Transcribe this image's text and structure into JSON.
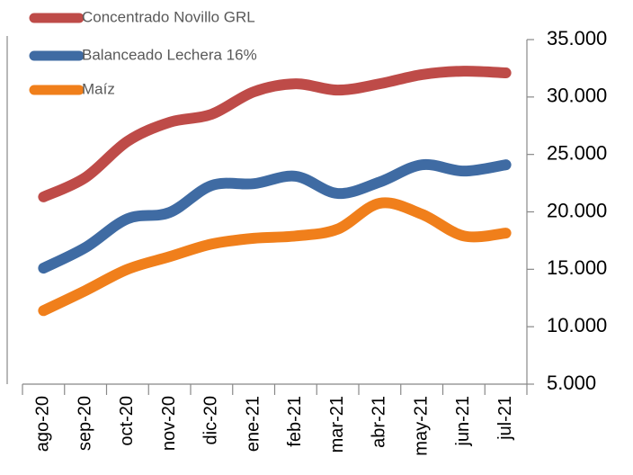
{
  "chart_data": {
    "type": "line",
    "categories": [
      "ago-20",
      "sep-20",
      "oct-20",
      "nov-20",
      "dic-20",
      "ene-21",
      "feb-21",
      "mar-21",
      "abr-21",
      "may-21",
      "jun-21",
      "jul-21"
    ],
    "series": [
      {
        "name": "Concentrado Novillo GRL",
        "color": "#be4b48",
        "values": [
          21300,
          23000,
          26150,
          27800,
          28500,
          30450,
          31150,
          30600,
          31150,
          31950,
          32250,
          32100
        ]
      },
      {
        "name": "Balanceado Lechera 16%",
        "color": "#3f6ba3",
        "values": [
          15100,
          16900,
          19400,
          19950,
          22300,
          22450,
          23100,
          21600,
          22600,
          24100,
          23550,
          24100
        ]
      },
      {
        "name": "Maíz",
        "color": "#f07f1b",
        "values": [
          11400,
          13150,
          15000,
          16100,
          17200,
          17700,
          17900,
          18500,
          20750,
          19800,
          17900,
          18150
        ]
      }
    ],
    "ylim": [
      5000,
      35000
    ],
    "yticks": [
      {
        "value": 5000,
        "label": "5.000"
      },
      {
        "value": 10000,
        "label": "10.000"
      },
      {
        "value": 15000,
        "label": "15.000"
      },
      {
        "value": 20000,
        "label": "20.000"
      },
      {
        "value": 25000,
        "label": "25.000"
      },
      {
        "value": 30000,
        "label": "30.000"
      },
      {
        "value": 35000,
        "label": "35.000"
      }
    ],
    "legend": "top-left"
  }
}
